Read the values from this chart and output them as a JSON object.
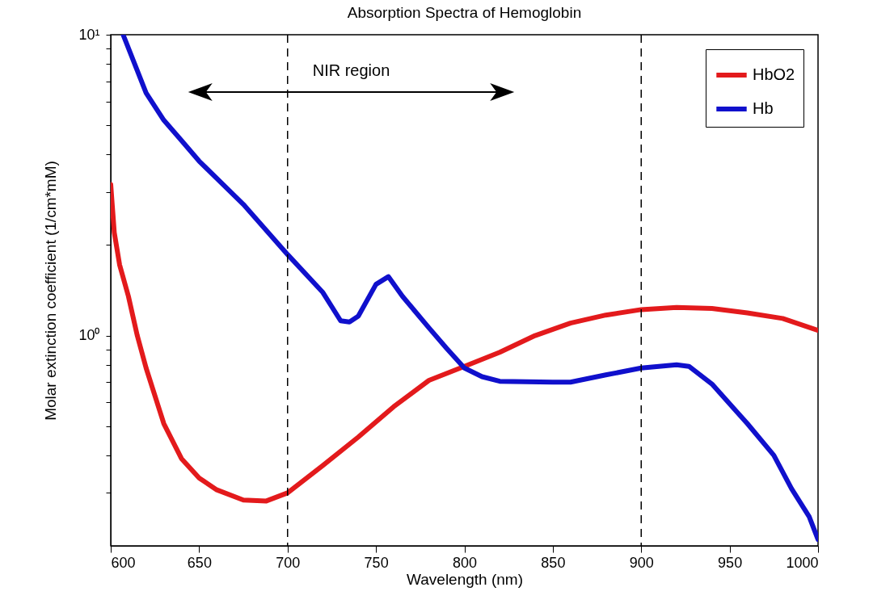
{
  "chart_data": {
    "type": "line",
    "title": "Absorption Spectra of Hemoglobin",
    "xlabel": "Wavelength (nm)",
    "ylabel": "Molar extinction coefficient (1/cm*mM)",
    "log": "y",
    "grid": false,
    "legend": "top right",
    "xlim": [
      600,
      1000
    ],
    "xticks": [
      600,
      650,
      700,
      750,
      800,
      850,
      900,
      950,
      1000
    ],
    "ylim": [
      0.2,
      10
    ],
    "yticks": [
      {
        "value": 0.3,
        "label": null
      },
      {
        "value": 0.4,
        "label": null
      },
      {
        "value": 0.5,
        "label": null
      },
      {
        "value": 0.6,
        "label": null
      },
      {
        "value": 0.7,
        "label": null
      },
      {
        "value": 0.8,
        "label": null
      },
      {
        "value": 0.9,
        "label": null
      },
      {
        "value": 1,
        "label": "10⁰"
      },
      {
        "value": 2,
        "label": null
      },
      {
        "value": 3,
        "label": null
      },
      {
        "value": 4,
        "label": null
      },
      {
        "value": 5,
        "label": null
      },
      {
        "value": 6,
        "label": null
      },
      {
        "value": 7,
        "label": null
      },
      {
        "value": 8,
        "label": null
      },
      {
        "value": 9,
        "label": null
      },
      {
        "value": 10,
        "label": "10¹"
      }
    ],
    "series": [
      {
        "name": "HbO2",
        "color": "#e31a1c",
        "x": [
          600,
          602,
          605,
          610,
          615,
          620,
          630,
          640,
          650,
          660,
          675,
          688,
          700,
          720,
          740,
          760,
          780,
          800,
          820,
          840,
          860,
          880,
          900,
          920,
          940,
          960,
          980,
          1000
        ],
        "values": [
          3.18,
          2.2,
          1.72,
          1.35,
          1.0,
          0.78,
          0.51,
          0.39,
          0.336,
          0.307,
          0.284,
          0.282,
          0.3,
          0.37,
          0.46,
          0.58,
          0.71,
          0.79,
          0.88,
          1.0,
          1.1,
          1.17,
          1.22,
          1.24,
          1.23,
          1.19,
          1.14,
          1.04
        ]
      },
      {
        "name": "Hb",
        "color": "#1010cc",
        "x": [
          607,
          615,
          620,
          630,
          640,
          650,
          675,
          700,
          720,
          730,
          735,
          740,
          750,
          757,
          765,
          780,
          790,
          800,
          810,
          820,
          850,
          860,
          880,
          900,
          920,
          927,
          940,
          960,
          975,
          985,
          995,
          1000
        ],
        "values": [
          10,
          7.6,
          6.4,
          5.2,
          4.45,
          3.8,
          2.73,
          1.86,
          1.39,
          1.12,
          1.11,
          1.16,
          1.48,
          1.57,
          1.35,
          1.06,
          0.906,
          0.78,
          0.73,
          0.705,
          0.7,
          0.7,
          0.74,
          0.78,
          0.8,
          0.79,
          0.69,
          0.51,
          0.4,
          0.31,
          0.25,
          0.21
        ]
      }
    ],
    "ref_lines": [
      {
        "axis": "x",
        "value": 700,
        "line_style": "dashed",
        "color": "#000000"
      },
      {
        "axis": "x",
        "value": 900,
        "line_style": "dashed",
        "color": "#000000"
      }
    ],
    "annotations": [
      "NIR region"
    ]
  }
}
